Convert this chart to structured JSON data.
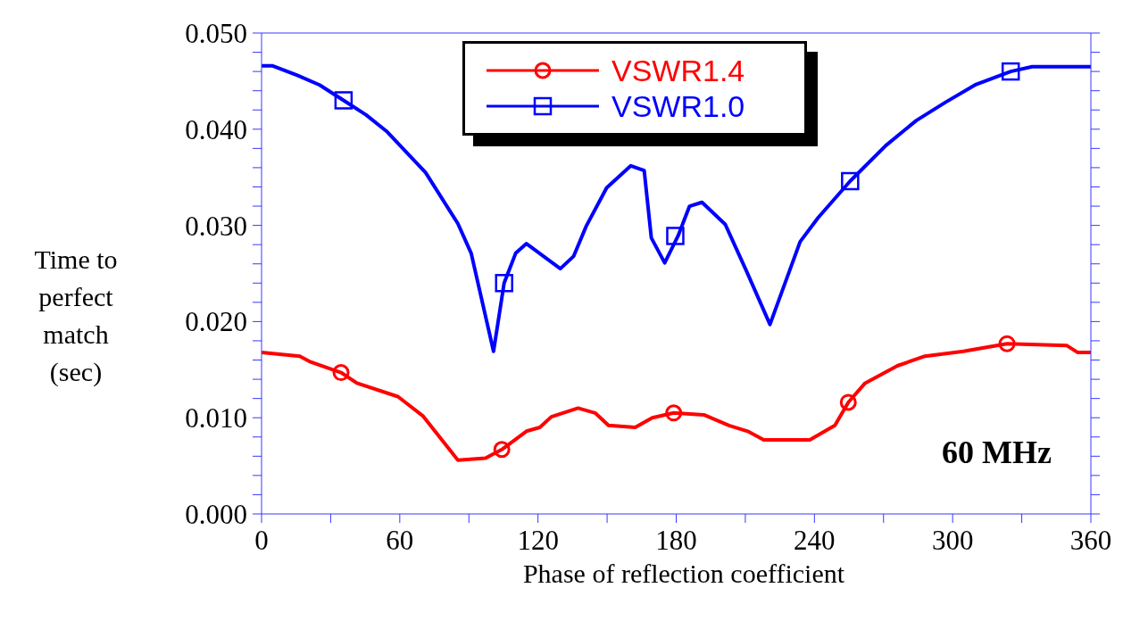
{
  "chart_data": {
    "type": "line",
    "xlabel": "Phase of reflection coefficient",
    "ylabel": "Time to perfect match (sec)",
    "annotations": [
      "60 MHz"
    ],
    "legend": "top",
    "xlim": [
      0,
      360
    ],
    "ylim": [
      0,
      0.05
    ],
    "xticks": [
      0,
      {
        "value": 30,
        "label": null
      },
      60,
      {
        "value": 90,
        "label": null
      },
      120,
      {
        "value": 150,
        "label": null
      },
      180,
      {
        "value": 210,
        "label": null
      },
      240,
      {
        "value": 270,
        "label": null
      },
      300,
      {
        "value": 330,
        "label": null
      },
      360
    ],
    "yticks": [
      {
        "value": 0,
        "label": "0.000"
      },
      {
        "value": 0.002,
        "label": null
      },
      {
        "value": 0.004,
        "label": null
      },
      {
        "value": 0.006,
        "label": null
      },
      {
        "value": 0.008,
        "label": null
      },
      {
        "value": 0.01,
        "label": "0.010"
      },
      {
        "value": 0.012,
        "label": null
      },
      {
        "value": 0.014,
        "label": null
      },
      {
        "value": 0.016,
        "label": null
      },
      {
        "value": 0.018,
        "label": null
      },
      {
        "value": 0.02,
        "label": "0.020"
      },
      {
        "value": 0.022,
        "label": null
      },
      {
        "value": 0.024,
        "label": null
      },
      {
        "value": 0.026,
        "label": null
      },
      {
        "value": 0.028,
        "label": null
      },
      {
        "value": 0.03,
        "label": "0.030"
      },
      {
        "value": 0.032,
        "label": null
      },
      {
        "value": 0.034,
        "label": null
      },
      {
        "value": 0.036,
        "label": null
      },
      {
        "value": 0.038,
        "label": null
      },
      {
        "value": 0.04,
        "label": "0.040"
      },
      {
        "value": 0.042,
        "label": null
      },
      {
        "value": 0.044,
        "label": null
      },
      {
        "value": 0.046,
        "label": null
      },
      {
        "value": 0.048,
        "label": null
      },
      {
        "value": 0.05,
        "label": "0.050"
      }
    ],
    "series": [
      {
        "name": "VSWR1.4",
        "color": "#ff0000",
        "x": [
          0,
          16.6,
          21.3,
          34.5,
          41.4,
          59.2,
          70,
          85.2,
          97.2,
          104.3,
          115,
          120.8,
          125.8,
          137.4,
          144.8,
          150.6,
          162.2,
          169.6,
          178.9,
          192,
          202.9,
          211,
          218,
          238,
          248.9,
          254.7,
          262,
          276,
          288,
          304.7,
          323.6,
          349.6,
          354.2,
          360
        ],
        "values": [
          0.0168,
          0.0164,
          0.0158,
          0.0147,
          0.0136,
          0.0122,
          0.0102,
          0.0056,
          0.0058,
          0.0067,
          0.0086,
          0.009,
          0.0101,
          0.011,
          0.0105,
          0.0092,
          0.009,
          0.01,
          0.0105,
          0.0103,
          0.0092,
          0.0086,
          0.0077,
          0.0077,
          0.0092,
          0.0116,
          0.0136,
          0.0154,
          0.0164,
          0.0169,
          0.0177,
          0.0175,
          0.0168,
          0.0168
        ]
      },
      {
        "name": "VSWR1.0",
        "color": "#0000ff",
        "x": [
          0,
          4.6,
          15.5,
          25.2,
          35.6,
          45.3,
          54.2,
          71.2,
          85.2,
          91,
          100.7,
          105.3,
          110.3,
          115,
          129.7,
          135.5,
          140.9,
          149.8,
          160.3,
          166.1,
          169.2,
          175,
          180.8,
          185.8,
          191.2,
          201.3,
          210.6,
          220.7,
          233.8,
          241.6,
          255.5,
          271,
          284.2,
          296.9,
          309.7,
          325.2,
          334.5,
          360
        ],
        "values": [
          0.0466,
          0.0466,
          0.0456,
          0.0446,
          0.043,
          0.0415,
          0.0398,
          0.0355,
          0.0302,
          0.0271,
          0.0169,
          0.024,
          0.0271,
          0.0281,
          0.0255,
          0.0268,
          0.0299,
          0.0339,
          0.0362,
          0.0357,
          0.0287,
          0.0261,
          0.0289,
          0.032,
          0.0324,
          0.0301,
          0.0252,
          0.0197,
          0.0283,
          0.0308,
          0.0346,
          0.0383,
          0.0409,
          0.0428,
          0.0446,
          0.046,
          0.0465,
          0.0465
        ]
      },
      {
        "type": "scatter",
        "color": "#ff0000",
        "marker": "circle",
        "x": [
          34.5,
          104.3,
          178.9,
          254.7,
          323.6
        ],
        "values": [
          0.0147,
          0.0067,
          0.0105,
          0.0116,
          0.0177
        ]
      },
      {
        "type": "scatter",
        "color": "#0000ff",
        "marker": "square",
        "x": [
          35.6,
          105.3,
          179.6,
          255.5,
          325.2
        ],
        "values": [
          0.043,
          0.024,
          0.0289,
          0.0346,
          0.046
        ]
      }
    ]
  }
}
